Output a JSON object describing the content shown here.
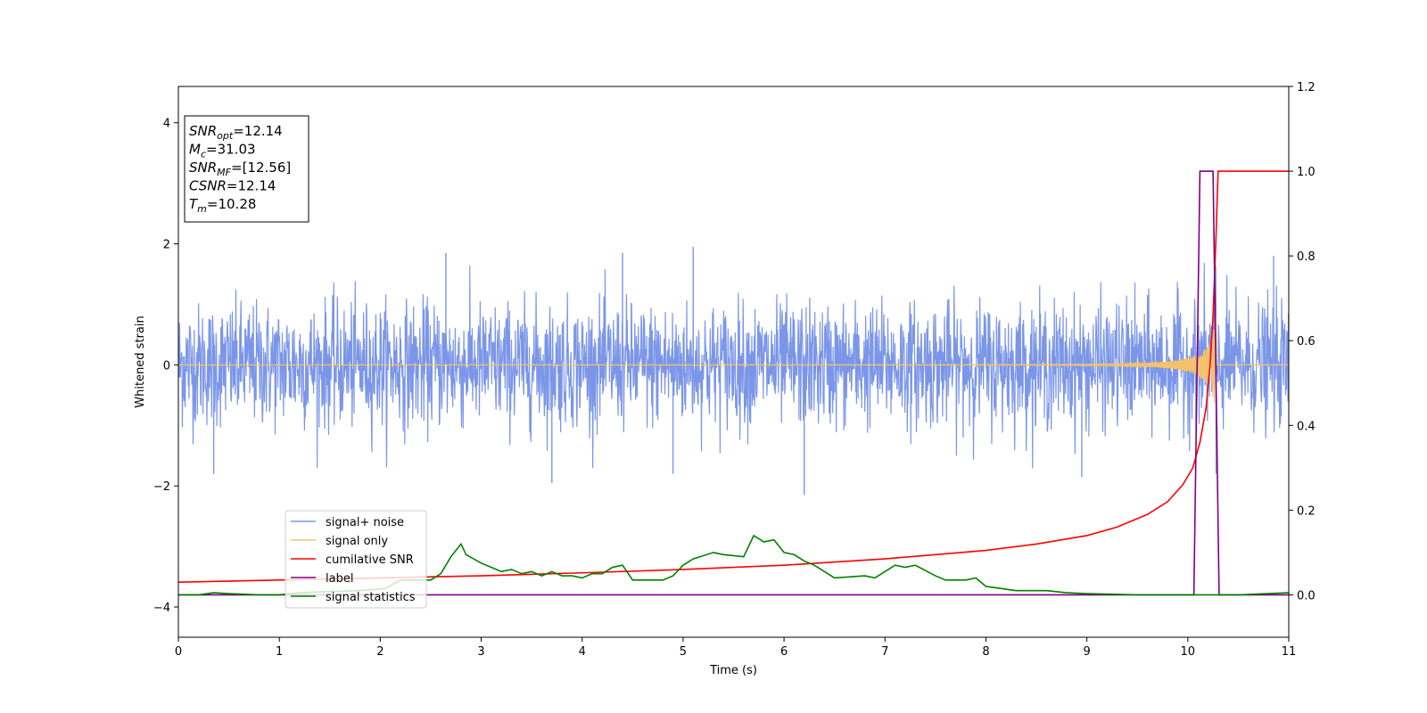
{
  "chart_data": {
    "type": "line",
    "title": "",
    "xlabel": "Time (s)",
    "ylabel": "Whitened strain",
    "xlim": [
      0,
      11
    ],
    "ylim": [
      -4.5,
      4.6
    ],
    "ylim_right": [
      -0.1,
      1.2
    ],
    "grid": false,
    "x_ticks": [
      "0",
      "1",
      "2",
      "3",
      "4",
      "5",
      "6",
      "7",
      "8",
      "9",
      "10",
      "11"
    ],
    "y_ticks": [
      "−4",
      "−2",
      "0",
      "2",
      "4"
    ],
    "y_ticks_right": [
      "0.0",
      "0.2",
      "0.4",
      "0.6",
      "0.8",
      "1.0",
      "1.2"
    ],
    "annotation": [
      {
        "symbol": "SNR",
        "sub": "opt",
        "value": "=12.14"
      },
      {
        "symbol": "M",
        "sub": "c",
        "value": "=31.03"
      },
      {
        "symbol": "SNR",
        "sub": "MF",
        "value": "=[12.56]"
      },
      {
        "symbol": "CSNR",
        "sub": "",
        "value": "=12.14"
      },
      {
        "symbol": "T",
        "sub": "m",
        "value": "=10.28"
      }
    ],
    "legend_position": "lower-left",
    "series": [
      {
        "name": "signal+ noise",
        "axis": "left",
        "color": "#7b96e8",
        "description": "whitened noisy strain, dense oscillation roughly within ±1.8",
        "envelope": 1.2,
        "peaks": [
          [
            0.35,
            -1.8
          ],
          [
            2.65,
            1.85
          ],
          [
            3.7,
            -1.95
          ],
          [
            4.4,
            1.85
          ],
          [
            4.9,
            -1.8
          ],
          [
            5.1,
            1.95
          ],
          [
            6.2,
            -2.15
          ],
          [
            8.95,
            -1.85
          ],
          [
            10.27,
            1.55
          ],
          [
            10.28,
            -1.8
          ],
          [
            10.85,
            1.8
          ]
        ]
      },
      {
        "name": "signal only",
        "axis": "left",
        "color": "#f5c26b",
        "description": "chirp growing from near zero to amplitude ~0.9 at merger",
        "merger_time": 10.28
      },
      {
        "name": "cumilative SNR",
        "axis": "right",
        "color": "#ff0000",
        "x": [
          0,
          1,
          2,
          3,
          4,
          5,
          6,
          7,
          7.5,
          8,
          8.5,
          9,
          9.3,
          9.6,
          9.8,
          9.95,
          10.05,
          10.12,
          10.18,
          10.22,
          10.25,
          10.28,
          10.3,
          11
        ],
        "values": [
          0.03,
          0.035,
          0.04,
          0.045,
          0.052,
          0.06,
          0.07,
          0.085,
          0.095,
          0.105,
          0.12,
          0.14,
          0.16,
          0.19,
          0.22,
          0.26,
          0.3,
          0.36,
          0.44,
          0.54,
          0.66,
          0.85,
          1.0,
          1.0
        ]
      },
      {
        "name": "label",
        "axis": "right",
        "color": "#800080",
        "x": [
          0,
          10.06,
          10.12,
          10.25,
          10.31,
          11
        ],
        "values": [
          0.0,
          0.0,
          1.0,
          1.0,
          0.0,
          0.0
        ]
      },
      {
        "name": "signal statistics",
        "axis": "right",
        "color": "#008000",
        "x": [
          0,
          0.2,
          0.35,
          0.5,
          0.8,
          1.0,
          1.2,
          1.5,
          1.8,
          2.05,
          2.2,
          2.5,
          2.6,
          2.7,
          2.8,
          2.85,
          3.0,
          3.2,
          3.3,
          3.4,
          3.5,
          3.6,
          3.7,
          3.8,
          3.9,
          4.0,
          4.1,
          4.2,
          4.3,
          4.4,
          4.5,
          4.6,
          4.8,
          4.9,
          5.0,
          5.1,
          5.3,
          5.4,
          5.6,
          5.7,
          5.8,
          5.9,
          6.0,
          6.1,
          6.2,
          6.3,
          6.4,
          6.5,
          6.8,
          6.9,
          7.0,
          7.1,
          7.2,
          7.3,
          7.5,
          7.6,
          7.8,
          7.9,
          8.0,
          8.3,
          8.6,
          8.8,
          9.0,
          9.5,
          10.0,
          10.05,
          10.3,
          10.5,
          11.0
        ],
        "values": [
          0.0,
          0.0,
          0.005,
          0.003,
          0.0,
          0.0,
          0.005,
          0.008,
          0.01,
          0.015,
          0.035,
          0.035,
          0.05,
          0.09,
          0.12,
          0.095,
          0.075,
          0.055,
          0.06,
          0.05,
          0.055,
          0.045,
          0.055,
          0.045,
          0.045,
          0.04,
          0.05,
          0.05,
          0.065,
          0.07,
          0.035,
          0.035,
          0.035,
          0.045,
          0.07,
          0.085,
          0.1,
          0.095,
          0.09,
          0.14,
          0.125,
          0.13,
          0.1,
          0.095,
          0.08,
          0.07,
          0.055,
          0.04,
          0.045,
          0.04,
          0.055,
          0.07,
          0.065,
          0.07,
          0.045,
          0.035,
          0.035,
          0.04,
          0.02,
          0.01,
          0.01,
          0.005,
          0.003,
          0.0,
          0.0,
          0.0,
          0.0,
          0.0,
          0.005
        ]
      }
    ]
  }
}
